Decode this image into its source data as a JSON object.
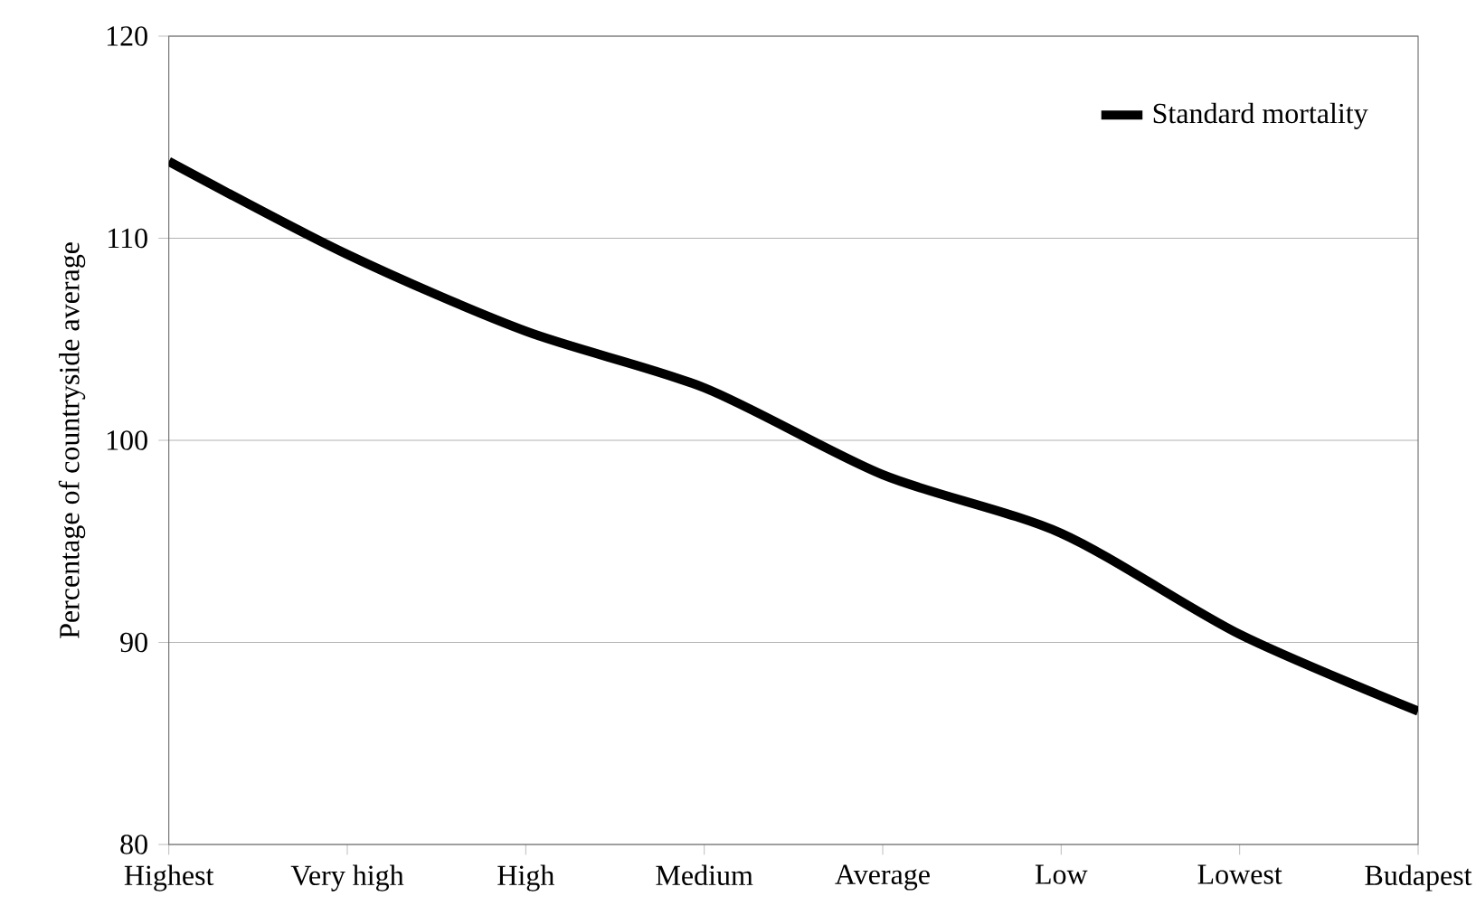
{
  "chart_data": {
    "type": "line",
    "ylabel": "Percentage of countryside average",
    "categories": [
      "Highest",
      "Very high",
      "High",
      "Medium",
      "Average",
      "Low",
      "Lowest",
      "Budapest"
    ],
    "series": [
      {
        "name": "Standard mortality",
        "color": "#000000",
        "values": [
          113.8,
          109.2,
          105.4,
          102.6,
          98.3,
          95.4,
          90.4,
          86.6
        ]
      }
    ],
    "ylim": [
      80,
      120
    ],
    "yticks": [
      80,
      90,
      100,
      110,
      120
    ],
    "grid": "y",
    "legend": "top right",
    "marker": "none",
    "line_style": "solid"
  }
}
